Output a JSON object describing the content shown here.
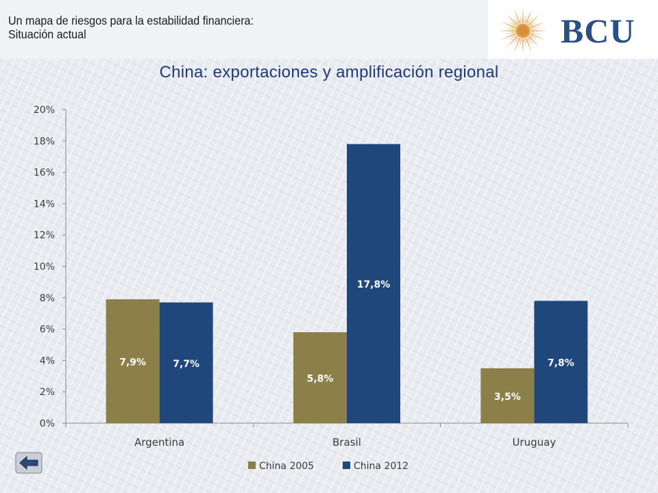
{
  "header": {
    "title": "Un mapa de riesgos para la estabilidad financiera: Situación actual",
    "logo_text": "BCU"
  },
  "nav": {
    "back_icon": "back-arrow-icon"
  },
  "colors": {
    "series_2005": "#8c7f4a",
    "series_2012": "#1f477b",
    "title": "#1f3878",
    "logo": "#2a4f86",
    "sun": "#e3a554"
  },
  "chart_data": {
    "type": "bar",
    "title": "China: exportaciones y amplificación regional",
    "categories": [
      "Argentina",
      "Brasil",
      "Uruguay"
    ],
    "series": [
      {
        "name": "China 2005",
        "values": [
          7.9,
          5.8,
          3.5
        ],
        "labels": [
          "7,9%",
          "5,8%",
          "3,5%"
        ]
      },
      {
        "name": "China 2012",
        "values": [
          7.7,
          17.8,
          7.8
        ],
        "labels": [
          "7,7%",
          "17,8%",
          "7,8%"
        ]
      }
    ],
    "ylim": [
      0,
      20
    ],
    "yticks": [
      "0%",
      "2%",
      "4%",
      "6%",
      "8%",
      "10%",
      "12%",
      "14%",
      "16%",
      "18%",
      "20%"
    ],
    "xlabel": "",
    "ylabel": "",
    "grid": false,
    "legend_position": "bottom"
  }
}
